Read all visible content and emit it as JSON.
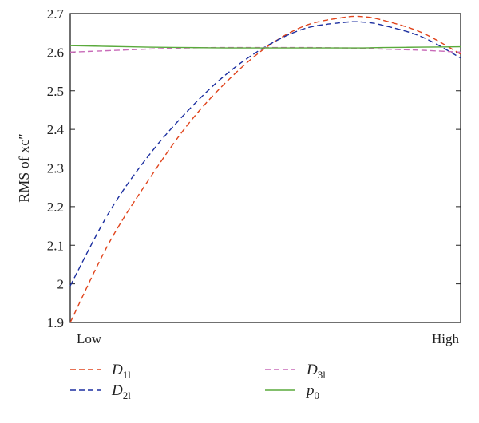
{
  "chart_data": {
    "type": "line",
    "title": "",
    "xlabel": "",
    "ylabel": "RMS of xc″",
    "x_ticks": [
      "Low",
      "High"
    ],
    "x_domain": [
      0,
      1
    ],
    "ylim": [
      1.9,
      2.7
    ],
    "y_ticks": [
      "1.9",
      "2",
      "2.1",
      "2.2",
      "2.3",
      "2.4",
      "2.5",
      "2.6",
      "2.7"
    ],
    "x": [
      0.0,
      0.1,
      0.2,
      0.3,
      0.4,
      0.5,
      0.6,
      0.7,
      0.75,
      0.8,
      0.9,
      1.0
    ],
    "series": [
      {
        "name": "D1l",
        "label_main": "D",
        "label_sub": "1l",
        "color": "#e0441c",
        "dash": "dashed",
        "values": [
          1.9,
          2.107,
          2.268,
          2.411,
          2.523,
          2.611,
          2.668,
          2.69,
          2.692,
          2.683,
          2.651,
          2.595
        ]
      },
      {
        "name": "D2l",
        "label_main": "D",
        "label_sub": "2l",
        "color": "#1c2fa0",
        "dash": "dashed",
        "values": [
          1.995,
          2.186,
          2.331,
          2.447,
          2.543,
          2.614,
          2.661,
          2.677,
          2.678,
          2.67,
          2.64,
          2.585
        ]
      },
      {
        "name": "D3l",
        "label_main": "D",
        "label_sub": "3l",
        "color": "#c86ab8",
        "dash": "dashed",
        "values": [
          2.6,
          2.604,
          2.608,
          2.611,
          2.612,
          2.612,
          2.612,
          2.611,
          2.61,
          2.608,
          2.605,
          2.6
        ]
      },
      {
        "name": "p0",
        "label_main": "p",
        "label_sub": "0",
        "color": "#5aaa3c",
        "dash": "solid",
        "values": [
          2.617,
          2.615,
          2.613,
          2.612,
          2.611,
          2.611,
          2.611,
          2.611,
          2.611,
          2.612,
          2.613,
          2.614
        ]
      }
    ],
    "grid": false,
    "legend_position": "bottom"
  }
}
